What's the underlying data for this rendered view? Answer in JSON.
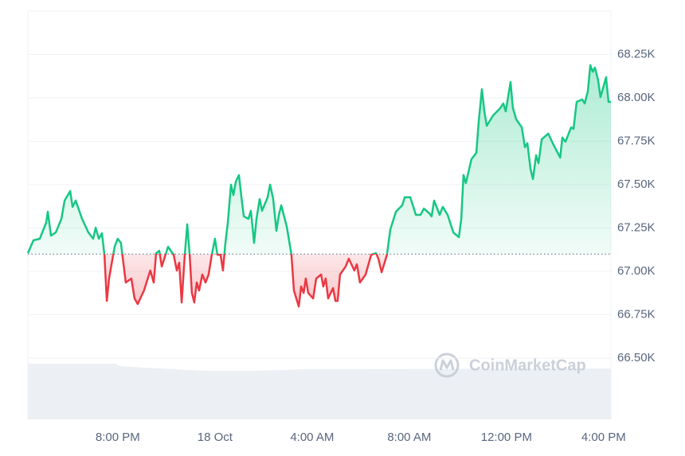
{
  "chart_data": {
    "type": "line",
    "watermark": "CoinMarketCap",
    "x": [
      16.3,
      16.53,
      16.79,
      17.05,
      17.12,
      17.25,
      17.45,
      17.68,
      17.81,
      18.04,
      18.14,
      18.27,
      18.53,
      18.79,
      18.99,
      19.09,
      19.22,
      19.35,
      19.45,
      19.55,
      19.64,
      19.87,
      20.0,
      20.13,
      20.33,
      20.56,
      20.69,
      20.82,
      21.08,
      21.34,
      21.48,
      21.58,
      21.71,
      21.81,
      22.07,
      22.3,
      22.43,
      22.53,
      22.63,
      22.76,
      22.86,
      22.96,
      23.05,
      23.15,
      23.25,
      23.35,
      23.48,
      23.61,
      23.74,
      23.87,
      24.0,
      24.1,
      24.23,
      24.33,
      24.43,
      24.53,
      24.66,
      24.76,
      24.86,
      24.99,
      25.09,
      25.19,
      25.38,
      25.48,
      25.61,
      25.71,
      25.84,
      25.94,
      26.17,
      26.27,
      26.4,
      26.53,
      26.63,
      26.73,
      26.96,
      27.15,
      27.25,
      27.45,
      27.55,
      27.65,
      27.74,
      27.84,
      28.04,
      28.17,
      28.37,
      28.46,
      28.56,
      28.66,
      28.86,
      28.96,
      29.05,
      29.15,
      29.38,
      29.51,
      29.74,
      29.84,
      29.97,
      30.2,
      30.43,
      30.63,
      30.73,
      30.86,
      31.08,
      31.22,
      31.45,
      31.71,
      31.81,
      32.04,
      32.27,
      32.46,
      32.6,
      32.82,
      32.92,
      33.02,
      33.25,
      33.38,
      33.58,
      33.81,
      34.04,
      34.14,
      34.23,
      34.33,
      34.56,
      34.76,
      34.86,
      34.99,
      35.09,
      35.19,
      35.45,
      35.74,
      35.87,
      35.97,
      36.17,
      36.26,
      36.4,
      36.63,
      36.76,
      36.86,
      36.99,
      37.09,
      37.22,
      37.32,
      37.45,
      37.72,
      37.94,
      38.21,
      38.3,
      38.43,
      38.66,
      38.76,
      38.89,
      39.12,
      39.22,
      39.35,
      39.45,
      39.55,
      39.64,
      39.77,
      39.87,
      40.0,
      40.1,
      40.2,
      40.3
    ],
    "values": [
      67105,
      67179,
      67188,
      67280,
      67344,
      67206,
      67225,
      67303,
      67408,
      67463,
      67372,
      67408,
      67303,
      67225,
      67188,
      67252,
      67188,
      67220,
      67096,
      66830,
      66959,
      67142,
      67188,
      67165,
      66936,
      66959,
      66844,
      66812,
      66890,
      67005,
      66936,
      67105,
      67119,
      67028,
      67142,
      67096,
      67005,
      67050,
      66821,
      67096,
      67271,
      67096,
      66876,
      66821,
      66936,
      66890,
      66982,
      66936,
      66982,
      67096,
      67188,
      67096,
      67096,
      67005,
      67165,
      67280,
      67500,
      67440,
      67518,
      67555,
      67427,
      67317,
      67303,
      67349,
      67165,
      67303,
      67417,
      67349,
      67427,
      67500,
      67417,
      67234,
      67326,
      67381,
      67257,
      67096,
      66890,
      66798,
      66913,
      66876,
      66959,
      66876,
      66844,
      66959,
      66982,
      66913,
      66959,
      66844,
      66904,
      66830,
      66830,
      66982,
      67028,
      67073,
      67005,
      67041,
      66936,
      66982,
      67096,
      67105,
      67073,
      66995,
      67096,
      67243,
      67344,
      67381,
      67427,
      67427,
      67326,
      67326,
      67362,
      67335,
      67317,
      67408,
      67326,
      67372,
      67326,
      67225,
      67197,
      67303,
      67555,
      67509,
      67647,
      67683,
      67867,
      68050,
      67922,
      67839,
      67899,
      67940,
      67968,
      67922,
      68092,
      67945,
      67876,
      67830,
      67716,
      67739,
      67592,
      67532,
      67670,
      67624,
      67761,
      67794,
      67729,
      67656,
      67771,
      67748,
      67830,
      67821,
      67977,
      67991,
      67968,
      68037,
      68188,
      68151,
      68174,
      68105,
      68005,
      68069,
      68119,
      67977,
      67977
    ],
    "baseline": 67100,
    "up_color": "#16c784",
    "down_color": "#ea3943",
    "xlim": [
      16.3,
      40.3
    ],
    "xticks": [
      {
        "value": 20,
        "label": "8:00 PM"
      },
      {
        "value": 24,
        "label": "18 Oct"
      },
      {
        "value": 28,
        "label": "4:00 AM"
      },
      {
        "value": 32,
        "label": "8:00 AM"
      },
      {
        "value": 36,
        "label": "12:00 PM"
      },
      {
        "value": 40,
        "label": "4:00 PM"
      }
    ],
    "ylim": [
      66147,
      68500
    ],
    "yticks": [
      {
        "value": 66500,
        "label": "66.50K"
      },
      {
        "value": 66750,
        "label": "66.75K"
      },
      {
        "value": 67000,
        "label": "67.00K"
      },
      {
        "value": 67250,
        "label": "67.25K"
      },
      {
        "value": 67500,
        "label": "67.50K"
      },
      {
        "value": 67750,
        "label": "67.75K"
      },
      {
        "value": 68000,
        "label": "68.00K"
      },
      {
        "value": 68250,
        "label": "68.25K"
      }
    ],
    "grid": true
  }
}
